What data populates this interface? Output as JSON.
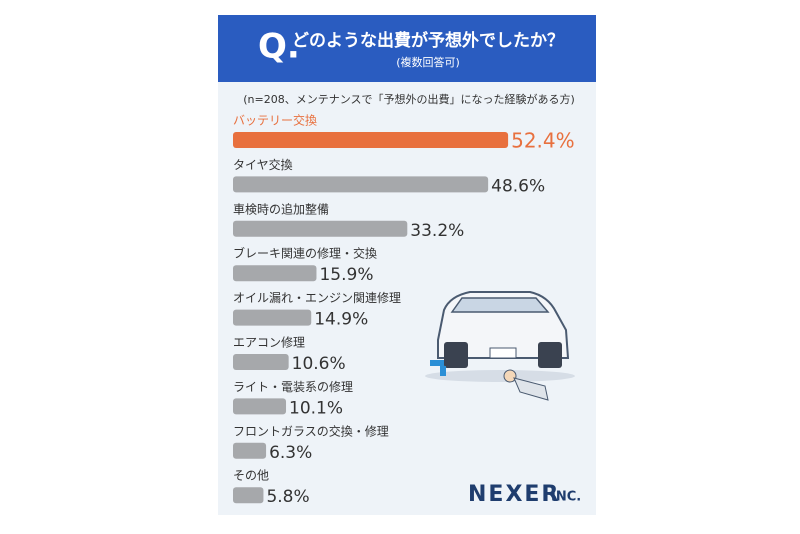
{
  "header": {
    "q": "Q.",
    "title": "どのような出費が予想外でしたか？",
    "subtitle": "(複数回答可)"
  },
  "chart_data": {
    "type": "bar",
    "note": "(n=208、メンテナンスで「予想外の出費」になった経験がある方)",
    "categories": [
      "バッテリー交換",
      "タイヤ交換",
      "車検時の追加整備",
      "ブレーキ関連の修理・交換",
      "オイル漏れ・エンジン関連修理",
      "エアコン修理",
      "ライト・電装系の修理",
      "フロントガラスの交換・修理",
      "その他"
    ],
    "values": [
      52.4,
      48.6,
      33.2,
      15.9,
      14.9,
      10.6,
      10.1,
      6.3,
      5.8
    ],
    "value_labels": [
      "52.4%",
      "48.6%",
      "33.2%",
      "15.9%",
      "14.9%",
      "10.6%",
      "10.1%",
      "6.3%",
      "5.8%"
    ],
    "colors": [
      "#e8703e",
      "#a6a8ab",
      "#a6a8ab",
      "#a6a8ab",
      "#a6a8ab",
      "#a6a8ab",
      "#a6a8ab",
      "#a6a8ab",
      "#a6a8ab"
    ],
    "label_colors": [
      "#e8703e",
      "#333333",
      "#333333",
      "#333333",
      "#333333",
      "#333333",
      "#333333",
      "#333333",
      "#333333"
    ]
  },
  "logo": {
    "name": "NEXER",
    "suffix": "INC."
  }
}
